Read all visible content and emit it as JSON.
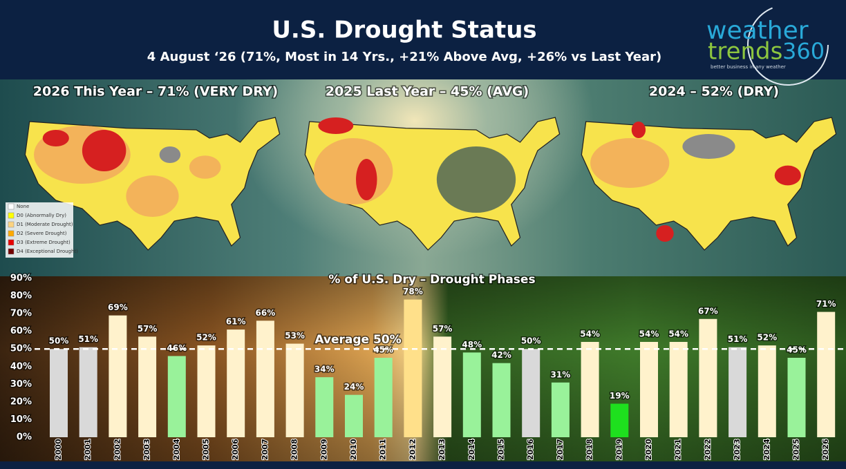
{
  "header": {
    "title": "U.S. Drought Status",
    "subtitle": "4 August ‘26 (71%, Most in 14 Yrs., +21% Above Avg, +26% vs Last Year)"
  },
  "logo": {
    "line1": "weather",
    "line2": "trends",
    "line3": "360",
    "tagline": "better business in any weather"
  },
  "maps": [
    {
      "title": "2026 This Year – 71% (VERY DRY)"
    },
    {
      "title": "2025 Last Year – 45% (AVG)"
    },
    {
      "title": "2024 – 52% (DRY)"
    }
  ],
  "legend": [
    "None",
    "D0 (Abnormally Dry)",
    "D1 (Moderate Drought)",
    "D2 (Severe Drought)",
    "D3 (Extreme Drought)",
    "D4 (Exceptional Drought)"
  ],
  "chart_data": {
    "type": "bar",
    "title": "% of U.S. Dry – Drought Phases",
    "categories": [
      "2000",
      "2001",
      "2002",
      "2003",
      "2004",
      "2005",
      "2006",
      "2007",
      "2008",
      "2009",
      "2010",
      "2011",
      "2012",
      "2013",
      "2014",
      "2015",
      "2016",
      "2017",
      "2018",
      "2019",
      "2020",
      "2021",
      "2022",
      "2023",
      "2024",
      "2025",
      "2026"
    ],
    "values": [
      50,
      51,
      69,
      57,
      46,
      52,
      61,
      66,
      53,
      34,
      24,
      45,
      78,
      57,
      48,
      42,
      50,
      31,
      54,
      19,
      54,
      54,
      67,
      51,
      52,
      45,
      71
    ],
    "value_labels": [
      "50%",
      "51%",
      "69%",
      "57%",
      "46%",
      "52%",
      "61%",
      "66%",
      "53%",
      "34%",
      "24%",
      "45%",
      "78%",
      "57%",
      "48%",
      "42%",
      "50%",
      "31%",
      "54%",
      "19%",
      "54%",
      "54%",
      "67%",
      "51%",
      "52%",
      "45%",
      "71%"
    ],
    "colors": [
      "#d9d9d9",
      "#d9d9d9",
      "#fff2cc",
      "#fff2cc",
      "#99f29a",
      "#fff2cc",
      "#fff2cc",
      "#fff2cc",
      "#fff2cc",
      "#99f29a",
      "#99f29a",
      "#99f29a",
      "#ffe08a",
      "#fff2cc",
      "#99f29a",
      "#99f29a",
      "#d9d9d9",
      "#99f29a",
      "#fff2cc",
      "#1ee01e",
      "#fff2cc",
      "#fff2cc",
      "#fff2cc",
      "#d9d9d9",
      "#fff2cc",
      "#99f29a",
      "#fff2cc"
    ],
    "ylim": [
      0,
      90
    ],
    "yticks": [
      {
        "value": 0,
        "label": "0%"
      },
      {
        "value": 10,
        "label": "10%"
      },
      {
        "value": 20,
        "label": "20%"
      },
      {
        "value": 30,
        "label": "30%"
      },
      {
        "value": 40,
        "label": "40%"
      },
      {
        "value": 50,
        "label": "50%"
      },
      {
        "value": 60,
        "label": "60%"
      },
      {
        "value": 70,
        "label": "70%"
      },
      {
        "value": 80,
        "label": "80%"
      },
      {
        "value": 90,
        "label": "90%"
      }
    ],
    "average": {
      "value": 50,
      "label": "Average 50%"
    }
  }
}
